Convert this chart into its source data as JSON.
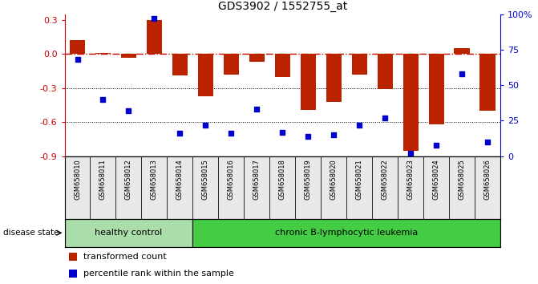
{
  "title": "GDS3902 / 1552755_at",
  "samples": [
    "GSM658010",
    "GSM658011",
    "GSM658012",
    "GSM658013",
    "GSM658014",
    "GSM658015",
    "GSM658016",
    "GSM658017",
    "GSM658018",
    "GSM658019",
    "GSM658020",
    "GSM658021",
    "GSM658022",
    "GSM658023",
    "GSM658024",
    "GSM658025",
    "GSM658026"
  ],
  "bar_values": [
    0.12,
    0.01,
    -0.03,
    0.3,
    -0.19,
    -0.37,
    -0.18,
    -0.07,
    -0.2,
    -0.49,
    -0.42,
    -0.18,
    -0.31,
    -0.85,
    -0.62,
    0.05,
    -0.5
  ],
  "percentile_values": [
    68,
    40,
    32,
    97,
    16,
    22,
    16,
    33,
    17,
    14,
    15,
    22,
    27,
    2,
    8,
    58,
    10
  ],
  "bar_color": "#bb2200",
  "dot_color": "#0000cc",
  "zero_line_color": "#cc0000",
  "grid_line_color": "#000000",
  "ylim": [
    -0.9,
    0.35
  ],
  "yticks_left": [
    0.3,
    0.0,
    -0.3,
    -0.6,
    -0.9
  ],
  "yticks_right": [
    100,
    75,
    50,
    25,
    0
  ],
  "group_labels": [
    "healthy control",
    "chronic B-lymphocytic leukemia"
  ],
  "group_split": 5,
  "group_color_light": "#aaddaa",
  "group_color_dark": "#44cc44",
  "legend_bar_label": "transformed count",
  "legend_dot_label": "percentile rank within the sample",
  "background_color": "#ffffff",
  "plot_bg_color": "#ffffff",
  "label_bg_color": "#e0e0e0",
  "label_cell_color": "#e8e8e8"
}
